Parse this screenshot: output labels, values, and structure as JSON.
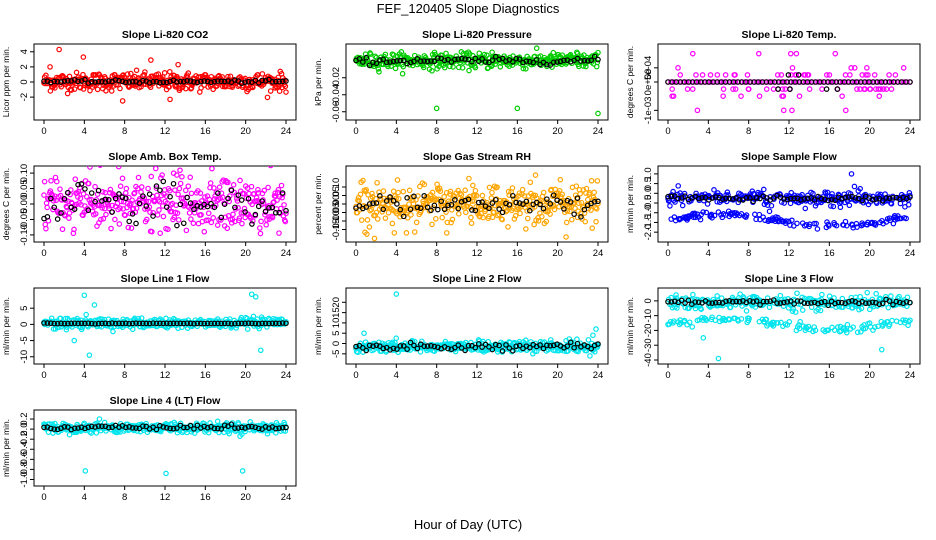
{
  "title": "FEF_120405  Slope Diagnostics",
  "xlabel": "Hour of Day (UTC)",
  "chart_data": [
    {
      "type": "scatter",
      "title": "Slope Li-820 CO2",
      "ylabel": "Licor ppm per min.",
      "xlim": [
        0,
        24
      ],
      "xticks": [
        0,
        4,
        8,
        12,
        16,
        20,
        24
      ],
      "ylim": [
        -4.5,
        4.5
      ],
      "yticks": [
        -2,
        0,
        2,
        4
      ],
      "ytick_labels": [
        "-2",
        "0",
        "2",
        "4"
      ],
      "color": "#ff0000",
      "base": 0.05,
      "noise": 0.6,
      "outliers": [
        [
          1.5,
          4.3
        ],
        [
          3.9,
          3.3
        ],
        [
          7.8,
          -2.5
        ],
        [
          10.6,
          2.9
        ],
        [
          0.6,
          2
        ],
        [
          13.3,
          2.3
        ],
        [
          12.5,
          -2.3
        ]
      ],
      "mean_noise": 0.1
    },
    {
      "type": "scatter",
      "title": "Slope Li-820 Pressure",
      "ylabel": "kPa per min.",
      "xlim": [
        0,
        24
      ],
      "xticks": [
        0,
        4,
        8,
        12,
        16,
        20,
        24
      ],
      "ylim": [
        -0.065,
        0.015
      ],
      "yticks": [
        -0.06,
        -0.04,
        -0.02
      ],
      "ytick_labels": [
        "-0.06",
        "-0.04",
        "-0.02"
      ],
      "color": "#00cc00",
      "base": 0,
      "noise": 0.0045,
      "outliers": [
        [
          8,
          -0.056
        ],
        [
          16,
          -0.056
        ],
        [
          24,
          -0.062
        ],
        [
          13.5,
          0.01
        ],
        [
          21.9,
          0.01
        ]
      ],
      "mean_noise": 0.002
    },
    {
      "type": "levels",
      "title": "Slope Li-820 Temp.",
      "ylabel": "degrees C per min.",
      "xlim": [
        0,
        24
      ],
      "xticks": [
        0,
        4,
        8,
        12,
        16,
        20,
        24
      ],
      "ylim": [
        -0.0012,
        0.0012
      ],
      "yticks": [
        -0.001,
        0,
        0.0005
      ],
      "ytick_labels": [
        "-1e-03",
        "0e+00",
        "5e-04"
      ],
      "color": "#ff00ff",
      "levels": [
        0,
        0.00025,
        -0.00025,
        0.0005,
        -0.0005,
        0.001,
        -0.001
      ],
      "level_counts": [
        80,
        30,
        30,
        6,
        10,
        5,
        4
      ]
    },
    {
      "type": "scatter",
      "title": "Slope Amb. Box Temp.",
      "ylabel": "degrees C per min.",
      "xlim": [
        0,
        24
      ],
      "xticks": [
        0,
        4,
        8,
        12,
        16,
        20,
        24
      ],
      "ylim": [
        -0.11,
        0.11
      ],
      "yticks": [
        -0.1,
        -0.05,
        0,
        0.05,
        0.1
      ],
      "ytick_labels": [
        "-0.10",
        "-0.05",
        "0.00",
        "0.05",
        "0.10"
      ],
      "color": "#ff00ff",
      "base": 0.0,
      "noise": 0.045,
      "outliers": [],
      "mean_noise": 0.035
    },
    {
      "type": "scatter",
      "title": "Slope Gas Stream RH",
      "ylabel": "percent per min.",
      "xlim": [
        0,
        24
      ],
      "xticks": [
        0,
        4,
        8,
        12,
        16,
        20,
        24
      ],
      "ylim": [
        -0.2,
        0.2
      ],
      "yticks": [
        -0.15,
        -0.1,
        -0.05,
        0,
        0.05,
        0.1
      ],
      "ytick_labels": [
        "-0.15",
        "-0.10",
        "-0.05",
        "0.00",
        "0.05",
        "0.10"
      ],
      "color": "#ffa500",
      "base": 0.0,
      "noise": 0.06,
      "outliers": [
        [
          3.8,
          -0.17
        ],
        [
          17.8,
          0.17
        ],
        [
          11.2,
          0.15
        ],
        [
          9,
          -0.17
        ]
      ],
      "mean_noise": 0.03
    },
    {
      "type": "scatter",
      "title": "Slope Sample Flow",
      "ylabel": "ml/min per min.",
      "xlim": [
        0,
        24
      ],
      "xticks": [
        0,
        4,
        8,
        12,
        16,
        20,
        24
      ],
      "ylim": [
        -2.3,
        1.2
      ],
      "yticks": [
        -2,
        -1.5,
        -1,
        -0.5,
        0,
        0.5,
        1
      ],
      "ytick_labels": [
        "-2.0",
        "-1.5",
        "-1.0",
        "-0.5",
        "0.0",
        "0.5",
        "1.0"
      ],
      "color": "#0000ff",
      "base": -0.25,
      "noise": 0.18,
      "outliers": [
        [
          18.2,
          1.0
        ]
      ],
      "mean_noise": 0.06,
      "second_band": true
    },
    {
      "type": "scatter",
      "title": "Slope Line 1 Flow",
      "ylabel": "ml/min per min.",
      "xlim": [
        0,
        24
      ],
      "xticks": [
        0,
        4,
        8,
        12,
        16,
        20,
        24
      ],
      "ylim": [
        -11,
        10
      ],
      "yticks": [
        -10,
        -5,
        0,
        5
      ],
      "ytick_labels": [
        "-10",
        "-5",
        "0",
        "5"
      ],
      "color": "#00e5ee",
      "base": 0.3,
      "noise": 0.8,
      "outliers": [
        [
          4,
          9
        ],
        [
          4.5,
          -9.5
        ],
        [
          3,
          -5
        ],
        [
          20.6,
          9.3
        ],
        [
          21,
          8.5
        ],
        [
          21.5,
          -8
        ],
        [
          5,
          6
        ]
      ],
      "mean_noise": 0.05
    },
    {
      "type": "scatter",
      "title": "Slope Line 2 Flow",
      "ylabel": "ml/min per min.",
      "xlim": [
        0,
        24
      ],
      "xticks": [
        0,
        4,
        8,
        12,
        16,
        20,
        24
      ],
      "ylim": [
        -8,
        25
      ],
      "yticks": [
        -5,
        0,
        5,
        10,
        15,
        20
      ],
      "ytick_labels": [
        "-5",
        "0",
        "5",
        "10",
        "15",
        "20"
      ],
      "color": "#00e5ee",
      "base": -1.5,
      "noise": 1.3,
      "outliers": [
        [
          4,
          24
        ],
        [
          23.8,
          7
        ],
        [
          23.5,
          4
        ],
        [
          0.8,
          5
        ],
        [
          23.2,
          -6
        ]
      ],
      "mean_noise": 0.8
    },
    {
      "type": "scatter",
      "title": "Slope Line 3 Flow",
      "ylabel": "ml/min per min.",
      "xlim": [
        0,
        24
      ],
      "xticks": [
        0,
        4,
        8,
        12,
        16,
        20,
        24
      ],
      "ylim": [
        -40,
        6
      ],
      "yticks": [
        -40,
        -30,
        -20,
        -10,
        0
      ],
      "ytick_labels": [
        "-40",
        "-30",
        "-20",
        "-10",
        "0"
      ],
      "color": "#00e5ee",
      "base": -1,
      "noise": 2.5,
      "outliers": [
        [
          5,
          -39
        ],
        [
          21.2,
          -33
        ],
        [
          3.5,
          -25
        ],
        [
          20,
          -15
        ],
        [
          0.8,
          4
        ]
      ],
      "mean_noise": 0.8,
      "second_band": true
    },
    {
      "type": "scatter",
      "title": "Slope Line 4 (LT) Flow",
      "ylabel": "ml/min per min.",
      "xlim": [
        0,
        24
      ],
      "xticks": [
        0,
        4,
        8,
        12,
        16,
        20,
        24
      ],
      "ylim": [
        -1.05,
        0.3
      ],
      "yticks": [
        -1,
        -0.8,
        -0.6,
        -0.4,
        -0.2,
        0,
        0.2
      ],
      "ytick_labels": [
        "-1.0",
        "-0.8",
        "-0.6",
        "-0.4",
        "-0.2",
        "0.0",
        "0.2"
      ],
      "color": "#00e5ee",
      "base": 0.03,
      "noise": 0.05,
      "outliers": [
        [
          4.1,
          -0.83
        ],
        [
          12.1,
          -0.88
        ],
        [
          19.7,
          -0.83
        ],
        [
          5.5,
          0.2
        ]
      ],
      "mean_noise": 0.02
    }
  ]
}
